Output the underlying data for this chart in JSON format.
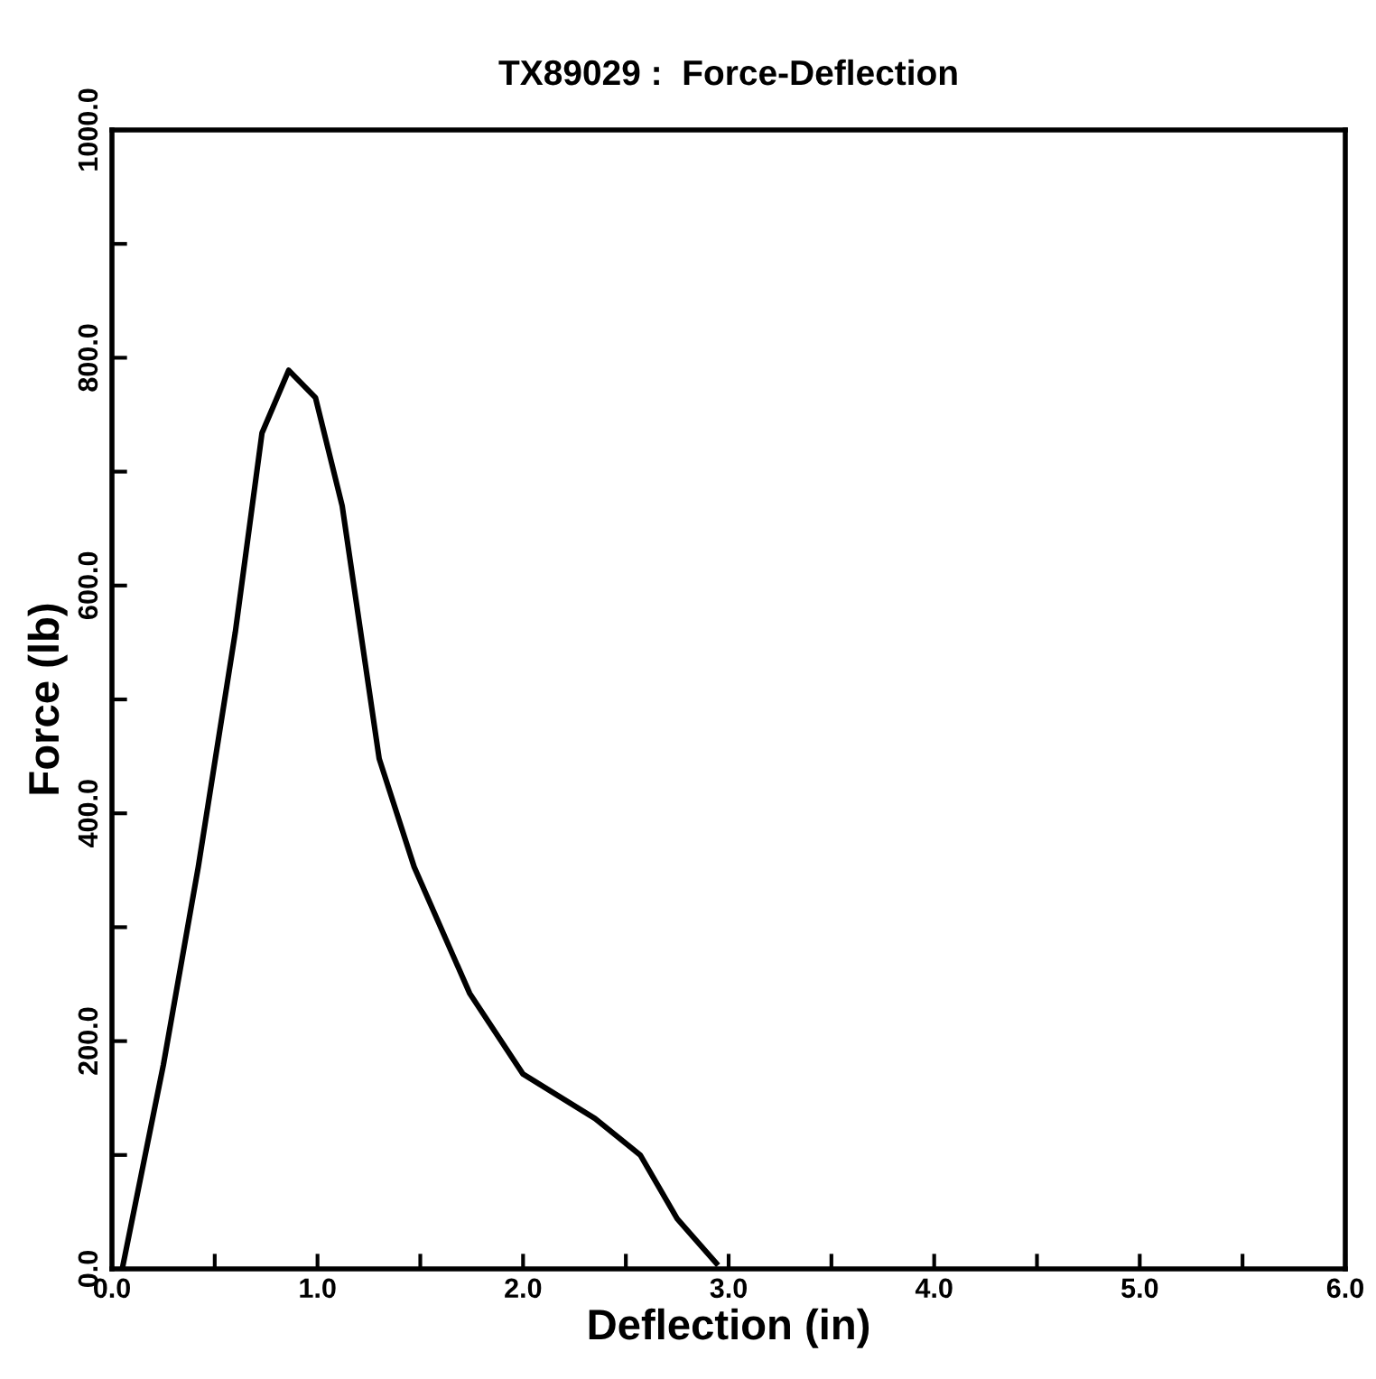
{
  "chart_data": {
    "type": "line",
    "title": "TX89029 :  Force-Deflection",
    "xlabel": "Deflection (in)",
    "ylabel": "Force (lb)",
    "series": [
      {
        "color": "#000000",
        "x": [
          0.05,
          0.25,
          0.42,
          0.6,
          0.73,
          0.86,
          0.99,
          1.12,
          1.3,
          1.47,
          1.74,
          2.0,
          2.35,
          2.57,
          2.75,
          2.94
        ],
        "values": [
          0,
          179,
          353,
          559,
          734,
          789,
          765,
          670,
          448,
          353,
          242,
          171,
          132,
          100,
          44,
          5
        ]
      }
    ],
    "xlim": [
      0,
      6
    ],
    "ylim": [
      0,
      1000
    ],
    "xticks": [
      {
        "value": 0,
        "label": "0.0"
      },
      {
        "value": 1,
        "label": "1.0"
      },
      {
        "value": 2,
        "label": "2.0"
      },
      {
        "value": 3,
        "label": "3.0"
      },
      {
        "value": 4,
        "label": "4.0"
      },
      {
        "value": 5,
        "label": "5.0"
      },
      {
        "value": 6,
        "label": "6.0"
      }
    ],
    "yticks": [
      {
        "value": 0,
        "label": "0.0"
      },
      {
        "value": 200,
        "label": "200.0"
      },
      {
        "value": 400,
        "label": "400.0"
      },
      {
        "value": 600,
        "label": "600.0"
      },
      {
        "value": 800,
        "label": "800.0"
      },
      {
        "value": 1000,
        "label": "1000.0"
      }
    ],
    "grid": false,
    "legend": false,
    "marker": "none",
    "line_style": "solid"
  }
}
